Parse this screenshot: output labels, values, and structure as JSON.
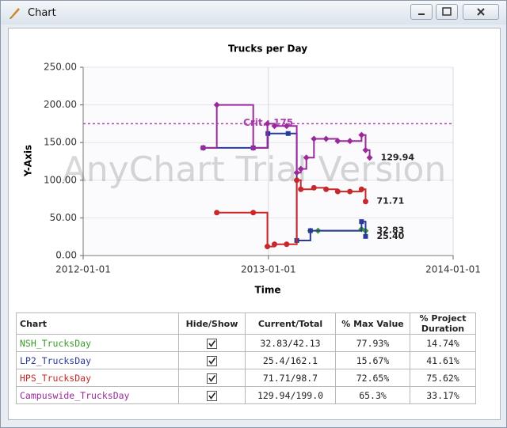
{
  "window": {
    "title": "Chart"
  },
  "chart_data": {
    "type": "step-line",
    "title": "Trucks per Day",
    "x_label": "Time",
    "y_label": "Y-Axis",
    "watermark": "AnyChart Trial Version",
    "xlim": [
      "2012-01-01",
      "2014-01-01"
    ],
    "xticks": [
      "2012-01-01",
      "2013-01-01",
      "2014-01-01"
    ],
    "ylim": [
      0,
      250
    ],
    "yticks": [
      {
        "value": 0,
        "label": "0.00"
      },
      {
        "value": 50,
        "label": "50.00"
      },
      {
        "value": 100,
        "label": "100.00"
      },
      {
        "value": 150,
        "label": "150.00"
      },
      {
        "value": 200,
        "label": "200.00"
      },
      {
        "value": 250,
        "label": "250.00"
      }
    ],
    "grid": true,
    "threshold": {
      "value": 175,
      "label": "Crit.: 175",
      "color": "#b040b0"
    },
    "series": [
      {
        "name": "NSH_TrucksDay",
        "color": "#3a9a2a",
        "marker": "diamond",
        "x": [
          "2013-03-25",
          "2013-04-09",
          "2013-07-04",
          "2013-07-12"
        ],
        "values": [
          33,
          33,
          35,
          32.83
        ],
        "value_labels": [
          null,
          null,
          null,
          "32.83"
        ]
      },
      {
        "name": "LP2_TrucksDay",
        "color": "#2a3a9a",
        "marker": "square",
        "x": [
          "2012-08-25",
          "2012-12-02",
          "2012-12-31",
          "2013-02-09",
          "2013-02-26",
          "2013-03-25",
          "2013-07-04",
          "2013-07-12"
        ],
        "values": [
          143,
          143,
          162,
          162,
          20,
          33,
          45,
          25.4
        ],
        "value_labels": [
          null,
          null,
          null,
          null,
          null,
          null,
          null,
          "25.40"
        ]
      },
      {
        "name": "HPS_TrucksDay",
        "color": "#c8282a",
        "marker": "circle",
        "x": [
          "2012-09-21",
          "2012-12-02",
          "2012-12-30",
          "2013-01-13",
          "2013-02-06",
          "2013-02-26",
          "2013-03-06",
          "2013-04-01",
          "2013-04-25",
          "2013-05-18",
          "2013-06-11",
          "2013-07-04",
          "2013-07-12"
        ],
        "values": [
          57,
          57,
          12,
          15,
          15,
          100,
          88,
          90,
          88,
          85,
          85,
          88,
          71.71
        ],
        "value_labels": [
          null,
          null,
          null,
          null,
          null,
          null,
          null,
          null,
          null,
          null,
          null,
          null,
          "71.71"
        ]
      },
      {
        "name": "Campuswide_TrucksDay",
        "color": "#9a2a9a",
        "marker": "diamond",
        "x": [
          "2012-08-25",
          "2012-09-21",
          "2012-12-02",
          "2012-12-30",
          "2013-01-13",
          "2013-02-06",
          "2013-02-26",
          "2013-03-06",
          "2013-03-17",
          "2013-04-01",
          "2013-04-25",
          "2013-05-18",
          "2013-06-11",
          "2013-07-04",
          "2013-07-12",
          "2013-07-20"
        ],
        "values": [
          143,
          200,
          143,
          175,
          172,
          172,
          110,
          115,
          130,
          155,
          155,
          152,
          152,
          160,
          140,
          129.94
        ],
        "value_labels": [
          null,
          null,
          null,
          null,
          null,
          null,
          null,
          null,
          null,
          null,
          null,
          null,
          null,
          null,
          null,
          "129.94"
        ]
      }
    ]
  },
  "table": {
    "headers": [
      "Chart",
      "Hide/Show",
      "Current/Total",
      "% Max Value",
      "% Project Duration"
    ],
    "rows": [
      {
        "checked": true,
        "current": "32.83/42.13",
        "max": "77.93%",
        "duration": "14.74%"
      },
      {
        "checked": true,
        "current": "25.4/162.1",
        "max": "15.67%",
        "duration": "41.61%"
      },
      {
        "checked": true,
        "current": "71.71/98.7",
        "max": "72.65%",
        "duration": "75.62%"
      },
      {
        "checked": true,
        "current": "129.94/199.0",
        "max": "65.3%",
        "duration": "33.17%"
      }
    ]
  }
}
